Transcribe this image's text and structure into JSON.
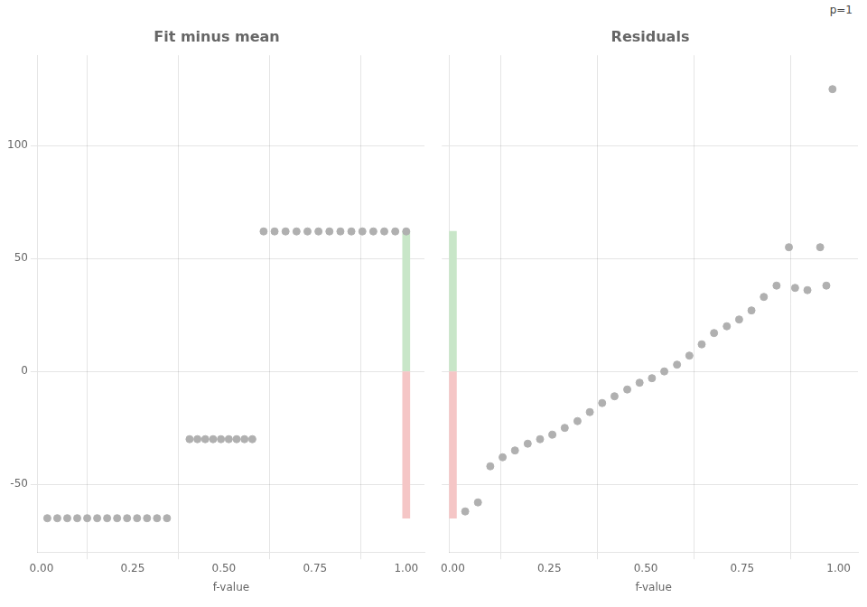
{
  "chart_data": [
    {
      "type": "scatter",
      "title": "Fit minus mean",
      "xlabel": "f-value",
      "xlim": [
        -0.01,
        1.05
      ],
      "xticks": [
        {
          "value": 0,
          "label": "0.00"
        },
        {
          "value": 0.25,
          "label": "0.25"
        },
        {
          "value": 0.5,
          "label": "0.50"
        },
        {
          "value": 0.75,
          "label": "0.75"
        },
        {
          "value": 1,
          "label": "1.00"
        }
      ],
      "ylim": [
        -80,
        140
      ],
      "yticks": [
        -50,
        0,
        50,
        100
      ],
      "grid": true,
      "series": [
        {
          "type": "scatter",
          "color": "#b0b0b0",
          "x": [
            0.016,
            0.0433333333,
            0.0706666667,
            0.098,
            0.1253333333,
            0.1526666667,
            0.18,
            0.2073333333,
            0.2346666667,
            0.262,
            0.2893333333,
            0.3166666667,
            0.344,
            0.406,
            0.4275,
            0.449,
            0.4705,
            0.492,
            0.5135,
            0.535,
            0.5565,
            0.578,
            0.609,
            0.6390769231,
            0.6691538462,
            0.6992307692,
            0.7293076923,
            0.7593846154,
            0.7894615385,
            0.8195384615,
            0.8496153846,
            0.8796923077,
            0.9097692308,
            0.9398461538,
            0.9699230769,
            1.0
          ],
          "values": [
            -65.0,
            -65.0,
            -65.0,
            -65.0,
            -65.0,
            -65.0,
            -65.0,
            -65.0,
            -65.0,
            -65.0,
            -65.0,
            -65.0,
            -65.0,
            -30.0,
            -30.0,
            -30.0,
            -30.0,
            -30.0,
            -30.0,
            -30.0,
            -30.0,
            -30.0,
            62.0,
            62.0,
            62.0,
            62.0,
            62.0,
            62.0,
            62.0,
            62.0,
            62.0,
            62.0,
            62.0,
            62.0,
            62.0,
            62.0
          ]
        },
        {
          "type": "bar",
          "color": "#c8e6c8",
          "x": [
            1.0
          ],
          "values": [
            62.0
          ]
        },
        {
          "type": "bar",
          "color": "#f5c6c6",
          "x": [
            1.0
          ],
          "values": [
            -65.0
          ]
        }
      ]
    },
    {
      "type": "scatter",
      "title": "Residuals",
      "xlabel": "f-value",
      "annotation": "p=1",
      "xlim": [
        -0.01,
        1.05
      ],
      "xticks": [
        {
          "value": 0,
          "label": "0.00"
        },
        {
          "value": 0.25,
          "label": "0.25"
        },
        {
          "value": 0.5,
          "label": "0.50"
        },
        {
          "value": 0.75,
          "label": "0.75"
        },
        {
          "value": 1,
          "label": "1.00"
        }
      ],
      "ylim": [
        -80,
        140
      ],
      "yticks": [
        -50,
        0,
        50,
        100
      ],
      "grid": true,
      "tick_labels": "x",
      "series": [
        {
          "type": "scatter",
          "color": "#b0b0b0",
          "x": [
            0.032,
            0.065,
            0.097,
            0.129,
            0.161,
            0.194,
            0.226,
            0.258,
            0.29,
            0.323,
            0.355,
            0.387,
            0.419,
            0.452,
            0.484,
            0.516,
            0.548,
            0.581,
            0.613,
            0.645,
            0.677,
            0.71,
            0.742,
            0.774,
            0.806,
            0.839,
            0.871,
            0.887,
            0.919,
            0.952,
            0.968,
            0.984
          ],
          "values": [
            -62,
            -58,
            -42,
            -38,
            -35,
            -32,
            -30,
            -28,
            -25,
            -22,
            -18,
            -14,
            -11,
            -8,
            -5,
            -3,
            0,
            3,
            7,
            12,
            17,
            20,
            23,
            27,
            33,
            38,
            55,
            37,
            36,
            55,
            38,
            125
          ]
        },
        {
          "type": "bar",
          "color": "#c8e6c8",
          "x": [
            0
          ],
          "values": [
            62.0
          ]
        },
        {
          "type": "bar",
          "color": "#f5c6c6",
          "x": [
            0
          ],
          "values": [
            -65.0
          ]
        }
      ]
    }
  ]
}
